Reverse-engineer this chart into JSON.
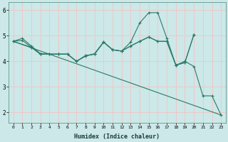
{
  "xlabel": "Humidex (Indice chaleur)",
  "background_color": "#cce8e8",
  "grid_color": "#f0c8c8",
  "line_color": "#2a7a6a",
  "xlim": [
    -0.5,
    23.5
  ],
  "ylim": [
    1.6,
    6.3
  ],
  "yticks": [
    2,
    3,
    4,
    5,
    6
  ],
  "xticks": [
    0,
    1,
    2,
    3,
    4,
    5,
    6,
    7,
    8,
    9,
    10,
    11,
    12,
    13,
    14,
    15,
    16,
    17,
    18,
    19,
    20,
    21,
    22,
    23
  ],
  "lines": [
    {
      "x": [
        0,
        1,
        2,
        3,
        4,
        5,
        6,
        7,
        8,
        9,
        10,
        11,
        12,
        13,
        14,
        15,
        16,
        17,
        18,
        19,
        20,
        21,
        22,
        23
      ],
      "y": [
        4.78,
        4.9,
        4.6,
        4.3,
        4.28,
        4.28,
        4.28,
        4.0,
        4.2,
        4.3,
        4.75,
        4.45,
        4.4,
        4.75,
        5.5,
        5.9,
        5.9,
        4.9,
        3.85,
        4.0,
        3.8,
        2.65,
        2.65,
        1.9
      ],
      "markers": true
    },
    {
      "x": [
        0,
        1,
        2,
        3,
        4,
        5,
        6,
        7,
        8,
        9,
        10,
        11,
        12,
        13,
        14,
        15,
        16,
        17,
        18,
        19,
        20
      ],
      "y": [
        4.78,
        4.82,
        4.55,
        4.28,
        4.28,
        4.28,
        4.28,
        4.0,
        4.22,
        4.28,
        4.75,
        4.45,
        4.4,
        4.6,
        4.78,
        4.95,
        4.78,
        4.78,
        3.85,
        3.95,
        5.05
      ],
      "markers": true
    },
    {
      "x": [
        0,
        2,
        3,
        4,
        5,
        6,
        7,
        8,
        9,
        10,
        11,
        12,
        13,
        14,
        15,
        16,
        17,
        18,
        19,
        20
      ],
      "y": [
        4.78,
        4.55,
        4.28,
        4.28,
        4.28,
        4.28,
        4.0,
        4.22,
        4.28,
        4.75,
        4.45,
        4.4,
        4.6,
        4.78,
        4.95,
        4.78,
        4.78,
        3.85,
        3.95,
        5.05
      ],
      "markers": true
    },
    {
      "x": [
        0,
        23
      ],
      "y": [
        4.78,
        1.9
      ],
      "markers": false
    }
  ]
}
